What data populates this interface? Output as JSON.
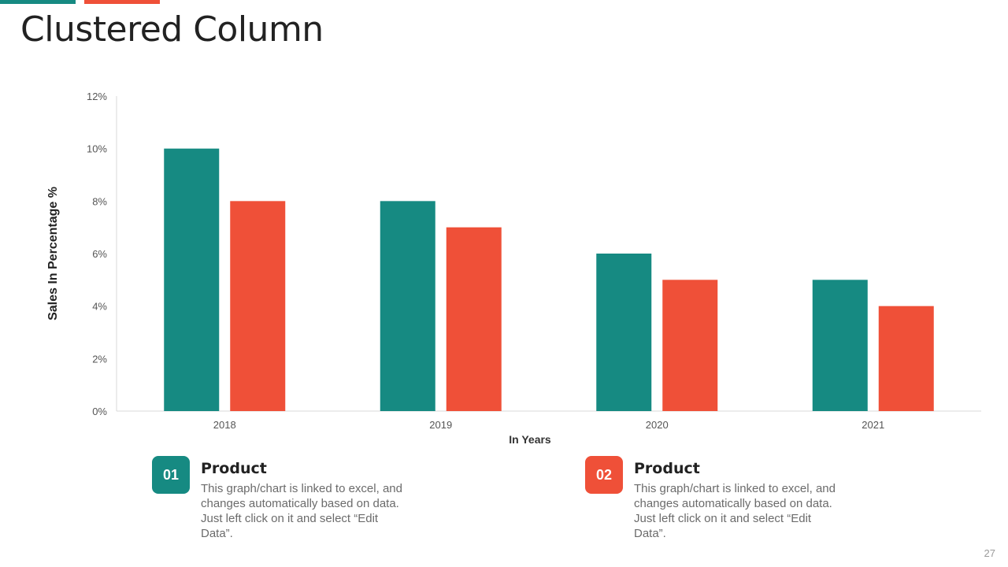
{
  "slide": {
    "title": "Clustered Column",
    "page_number": "27"
  },
  "colors": {
    "teal": "#168a82",
    "red": "#ef5038",
    "axis": "#d9d9d9"
  },
  "chart_data": {
    "type": "bar",
    "title": "",
    "categories": [
      "2018",
      "2019",
      "2020",
      "2021"
    ],
    "series": [
      {
        "values": [
          10,
          8,
          6,
          5
        ],
        "color": "#168a82"
      },
      {
        "values": [
          8,
          7,
          5,
          4
        ],
        "color": "#ef5038"
      }
    ],
    "xlabel": "In Years",
    "ylabel": "Sales In Percentage %",
    "ylim": [
      0,
      12
    ],
    "yticks": [
      0,
      2,
      4,
      6,
      8,
      10,
      12
    ],
    "ytick_labels": [
      "0%",
      "2%",
      "4%",
      "6%",
      "8%",
      "10%",
      "12%"
    ],
    "grid": false
  },
  "legend": [
    {
      "number": "01",
      "title": "Product",
      "description": "This graph/chart is linked to excel, and changes automatically based on data. Just left click on it and select “Edit Data”.",
      "color": "#168a82"
    },
    {
      "number": "02",
      "title": "Product",
      "description": "This graph/chart is linked to excel, and changes automatically based on data. Just left click on it and select “Edit Data”.",
      "color": "#ef5038"
    }
  ]
}
